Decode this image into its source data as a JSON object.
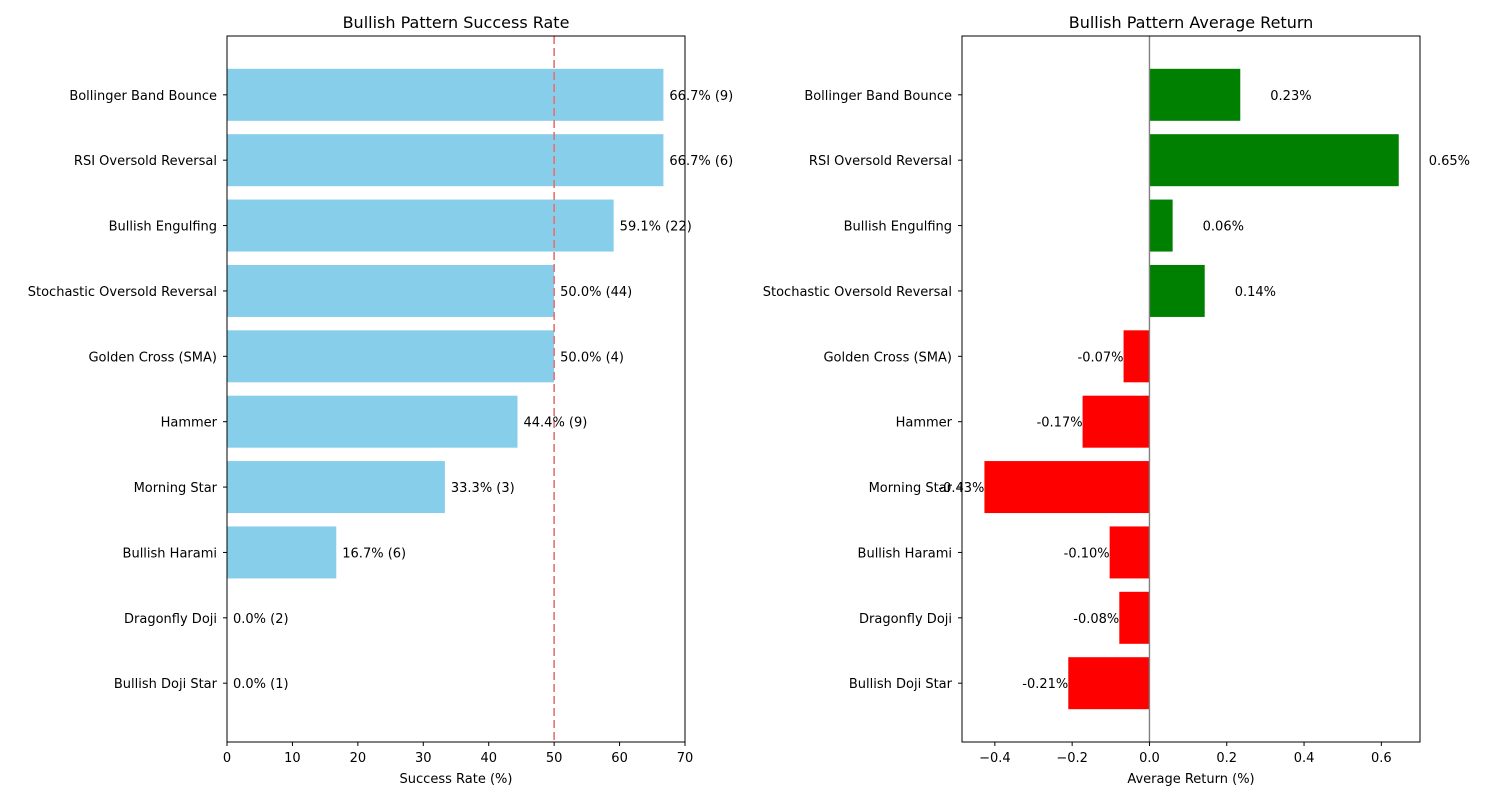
{
  "chart_data": [
    {
      "type": "bar",
      "orientation": "horizontal",
      "title": "Bullish Pattern Success Rate",
      "xlabel": "Success Rate (%)",
      "ylabel": "",
      "xlim": [
        0,
        70
      ],
      "xticks": [
        0,
        10,
        20,
        30,
        40,
        50,
        60,
        70
      ],
      "reference_line": {
        "value": 50,
        "style": "dashed",
        "color": "#e87070"
      },
      "bar_color": "#87ceeb",
      "categories": [
        "Bollinger Band Bounce",
        "RSI Oversold Reversal",
        "Bullish Engulfing",
        "Stochastic Oversold Reversal",
        "Golden Cross (SMA)",
        "Hammer",
        "Morning Star",
        "Bullish Harami",
        "Dragonfly Doji",
        "Bullish Doji Star"
      ],
      "values": [
        66.7,
        66.7,
        59.1,
        50.0,
        50.0,
        44.4,
        33.3,
        16.7,
        0.0,
        0.0
      ],
      "data_labels": [
        "66.7% (9)",
        "66.7% (6)",
        "59.1% (22)",
        "50.0% (44)",
        "50.0% (4)",
        "44.4% (9)",
        "33.3% (3)",
        "16.7% (6)",
        "0.0% (2)",
        "0.0% (1)"
      ],
      "grid": false
    },
    {
      "type": "bar",
      "orientation": "horizontal",
      "title": "Bullish Pattern Average Return",
      "xlabel": "Average Return (%)",
      "ylabel": "",
      "xlim": [
        -0.485,
        0.7
      ],
      "xticks": [
        -0.4,
        -0.2,
        0.0,
        0.2,
        0.4,
        0.6
      ],
      "xtick_labels": [
        "−0.4",
        "−0.2",
        "0.0",
        "0.2",
        "0.4",
        "0.6"
      ],
      "reference_line": {
        "value": 0,
        "style": "solid",
        "color": "#808080"
      },
      "positive_color": "#008000",
      "negative_color": "#ff0000",
      "categories": [
        "Bollinger Band Bounce",
        "RSI Oversold Reversal",
        "Bullish Engulfing",
        "Stochastic Oversold Reversal",
        "Golden Cross (SMA)",
        "Hammer",
        "Morning Star",
        "Bullish Harami",
        "Dragonfly Doji",
        "Bullish Doji Star"
      ],
      "values": [
        0.235,
        0.645,
        0.06,
        0.143,
        -0.067,
        -0.173,
        -0.427,
        -0.103,
        -0.078,
        -0.21
      ],
      "data_labels": [
        "0.23%",
        "0.65%",
        "0.06%",
        "0.14%",
        "-0.07%",
        "-0.17%",
        "-0.43%",
        "-0.10%",
        "-0.08%",
        "-0.21%"
      ],
      "grid": false
    }
  ]
}
